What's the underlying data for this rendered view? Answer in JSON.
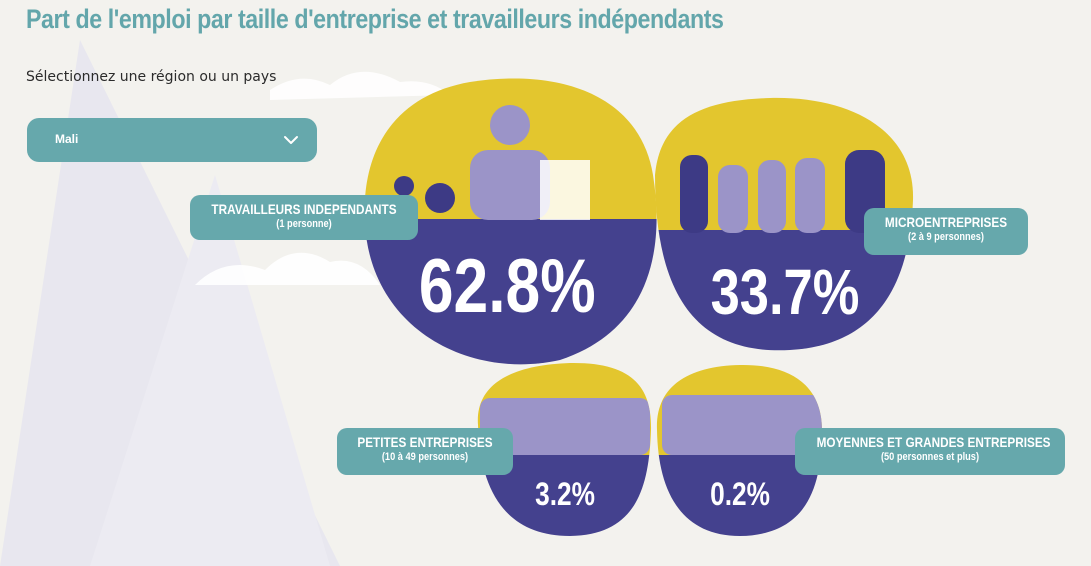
{
  "page": {
    "title": "Part de l'emploi par taille d'entreprise et travailleurs indépendants",
    "select_label": "Sélectionnez une région ou un pays"
  },
  "region_select": {
    "selected": "Mali",
    "icon": "chevron-down-icon"
  },
  "categories": [
    {
      "label": "TRAVAILLEURS INDEPENDANTS",
      "sublabel": "(1 personne)",
      "value": "62.8%"
    },
    {
      "label": "MICROENTREPRISES",
      "sublabel": "(2 à 9 personnes)",
      "value": "33.7%"
    },
    {
      "label": "PETITES ENTREPRISES",
      "sublabel": "(10 à 49 personnes)",
      "value": "3.2%"
    },
    {
      "label": "MOYENNES ET GRANDES ENTREPRISES",
      "sublabel": "(50 personnes et plus)",
      "value": "0.2%"
    }
  ],
  "colors": {
    "title": "#63a6ab",
    "teal": "#66a8ac",
    "yellow": "#e3c62e",
    "navy": "#44418e",
    "silhouette_light": "#9b94c8",
    "silhouette_dark": "#3d3a85",
    "mountain": "#e7e6ee",
    "background": "#f3f2ee"
  }
}
